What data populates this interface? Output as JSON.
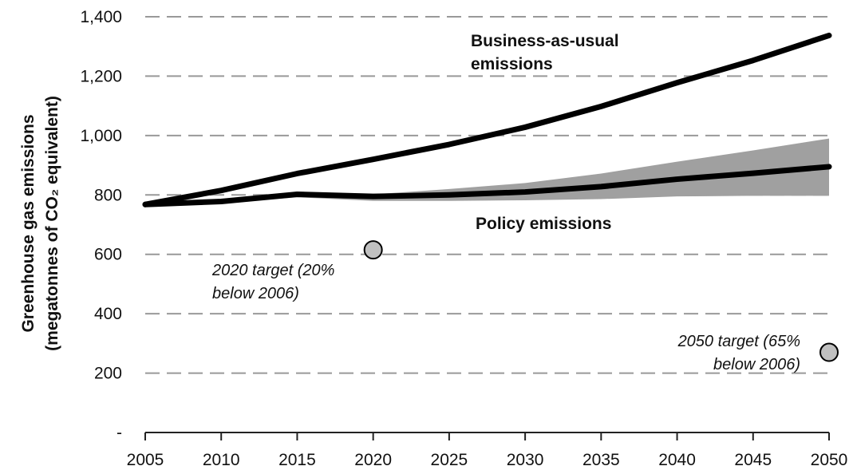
{
  "chart_data": {
    "type": "line",
    "title": "",
    "xlabel": "",
    "ylabel_line1": "Greenhouse gas emissions",
    "ylabel_line2": "(megatonnes of CO₂ equivalent)",
    "xlim": [
      2005,
      2050
    ],
    "ylim": [
      0,
      1400
    ],
    "x_ticks": [
      2005,
      2010,
      2015,
      2020,
      2025,
      2030,
      2035,
      2040,
      2045,
      2050
    ],
    "y_ticks": [
      0,
      200,
      400,
      600,
      800,
      1000,
      1200,
      1400
    ],
    "y_tick_labels": [
      "-",
      "200",
      "400",
      "600",
      "800",
      "1,000",
      "1,200",
      "1,400"
    ],
    "grid": "horizontal-dashed",
    "x": [
      2005,
      2010,
      2015,
      2020,
      2025,
      2030,
      2035,
      2040,
      2045,
      2050
    ],
    "series": [
      {
        "name": "Business-as-usual emissions",
        "label_line1": "Business-as-usual",
        "label_line2": "emissions",
        "values": [
          768,
          815,
          872,
          920,
          970,
          1028,
          1098,
          1178,
          1253,
          1337
        ]
      },
      {
        "name": "Policy emissions",
        "label_line1": "Policy emissions",
        "values": [
          768,
          778,
          802,
          795,
          800,
          810,
          828,
          853,
          873,
          895
        ]
      }
    ],
    "range_band": {
      "x": [
        2005,
        2010,
        2015,
        2020,
        2025,
        2030,
        2035,
        2040,
        2045,
        2050
      ],
      "upper": [
        768,
        780,
        806,
        802,
        820,
        840,
        872,
        912,
        950,
        990
      ],
      "lower": [
        768,
        773,
        792,
        780,
        780,
        782,
        786,
        795,
        797,
        797
      ]
    },
    "targets": [
      {
        "x": 2020,
        "y": 615,
        "label_line1": "2020 target (20%",
        "label_line2": "below 2006)"
      },
      {
        "x": 2050,
        "y": 270,
        "label_line1": "2050 target (65%",
        "label_line2": "below 2006)"
      }
    ],
    "colors": {
      "line": "#000000",
      "band": "#a0a0a0",
      "grid": "#999999",
      "marker": "#c0c0c0"
    }
  }
}
